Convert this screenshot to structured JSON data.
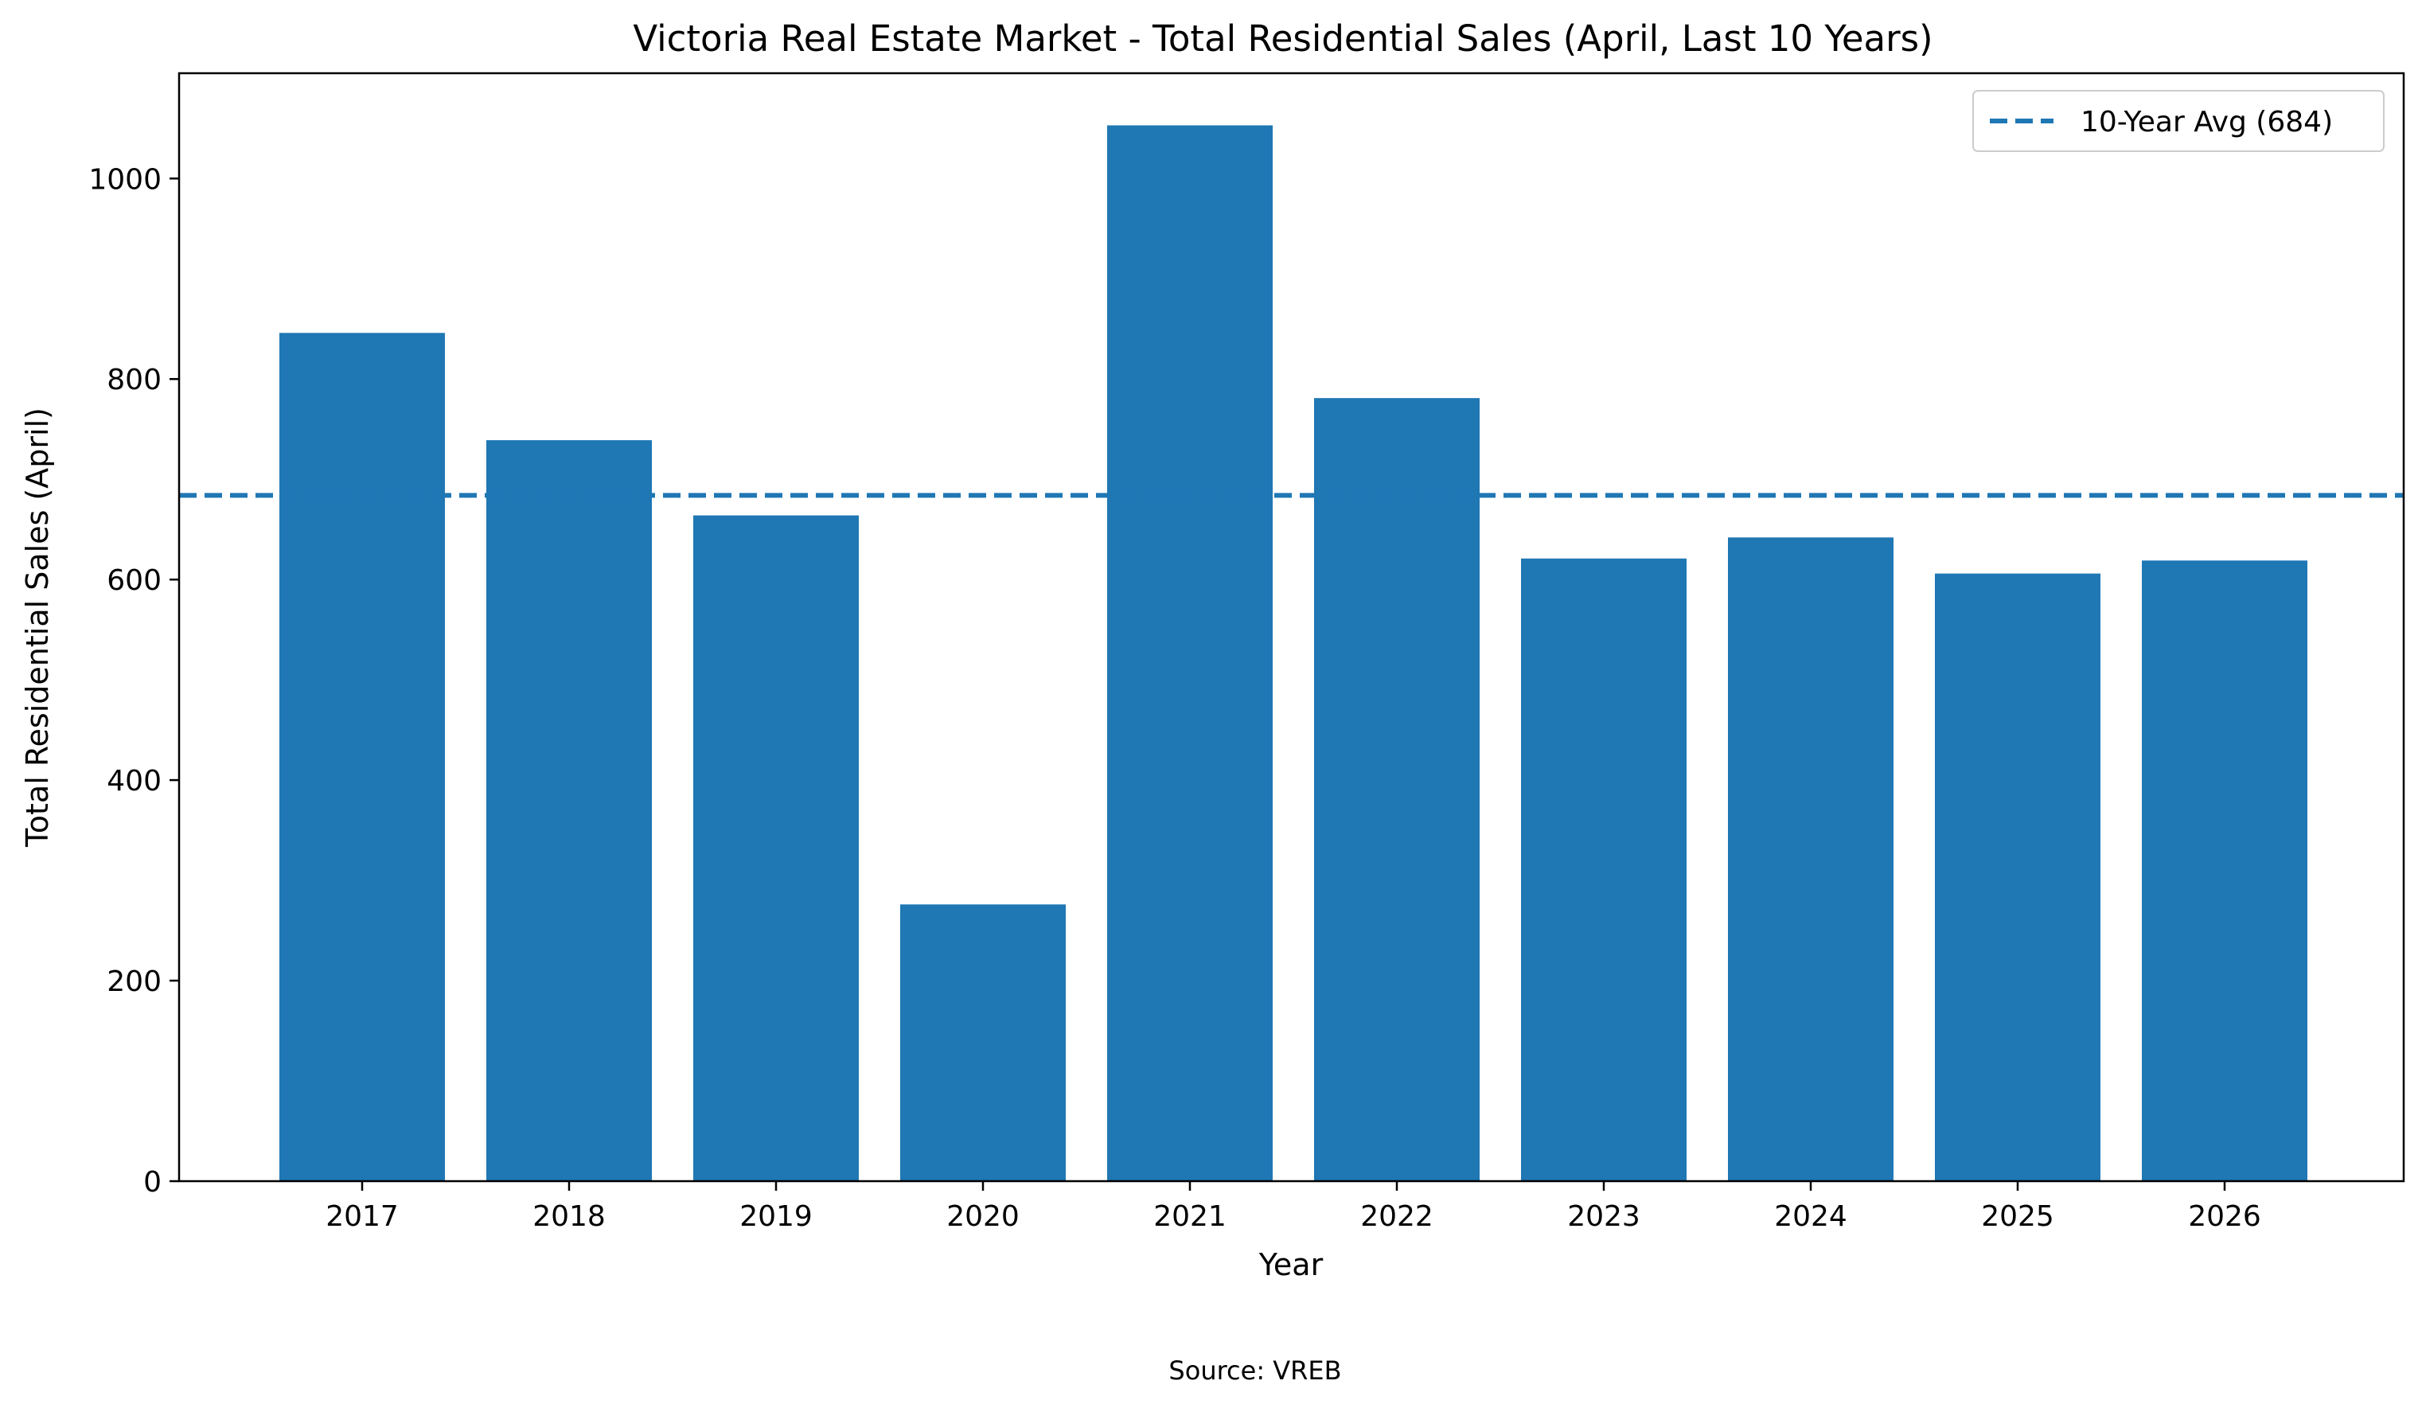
{
  "chart_data": {
    "type": "bar",
    "title": "Victoria Real Estate Market - Total Residential Sales (April, Last 10 Years)",
    "xlabel": "Year",
    "ylabel": "Total Residential Sales (April)",
    "categories": [
      "2017",
      "2018",
      "2019",
      "2020",
      "2021",
      "2022",
      "2023",
      "2024",
      "2025",
      "2026"
    ],
    "values": [
      846,
      739,
      664,
      276,
      1053,
      781,
      621,
      642,
      606,
      619
    ],
    "ylim": [
      0,
      1105
    ],
    "yticks": [
      0,
      200,
      400,
      600,
      800,
      1000
    ],
    "bar_color": "#1f77b4",
    "average": {
      "value": 684,
      "label": "10-Year Avg (684)",
      "style": "dashed",
      "color": "#1f77b4"
    },
    "legend_position": "top-right",
    "grid": false
  },
  "footer": {
    "source": "Source: VREB"
  }
}
